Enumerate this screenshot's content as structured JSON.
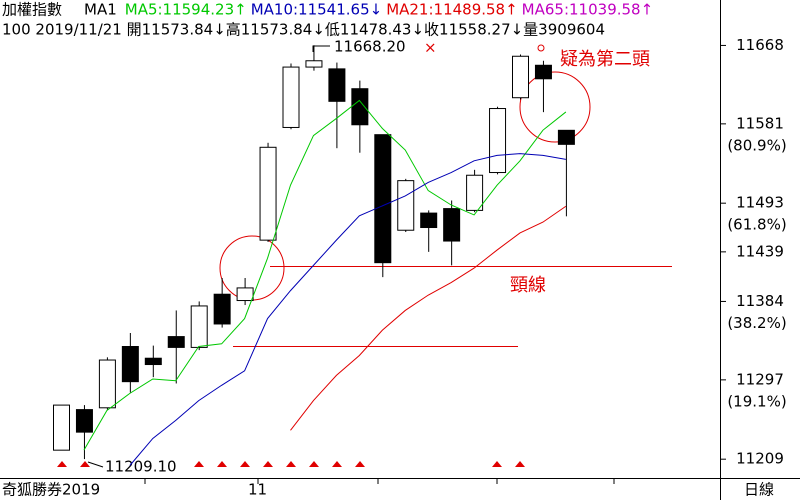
{
  "chart_data": {
    "type": "candlestick",
    "title": "加權指數",
    "subtitle": "MA1",
    "info_line": "100 2019/11/21 開11573.84↓高11573.84↓低11478.43↓收11558.27↓量3909604",
    "open": [
      11219,
      11264,
      11266,
      11334,
      11321,
      11345,
      11333,
      11392,
      11385,
      11452,
      11577,
      11644,
      11642,
      11620,
      11569,
      11463,
      11482,
      11487,
      11485,
      11527,
      11610,
      11646,
      11573.84
    ],
    "high": [
      11269,
      11269,
      11322,
      11349,
      11335,
      11374,
      11384,
      11410,
      11410,
      11560,
      11648,
      11668.2,
      11649,
      11629,
      11569,
      11520,
      11485,
      11496,
      11530,
      11600,
      11658,
      11651,
      11573.84
    ],
    "low": [
      11219,
      11209.1,
      11264,
      11283,
      11300,
      11293,
      11330,
      11355,
      11380,
      11450,
      11575,
      11640,
      11554,
      11549,
      11411,
      11461,
      11439,
      11424,
      11483,
      11525,
      11608,
      11594,
      11478.43
    ],
    "close": [
      11269,
      11239,
      11319,
      11295,
      11314,
      11333,
      11379,
      11359,
      11399,
      11555,
      11644,
      11651,
      11606,
      11580,
      11427,
      11518,
      11466,
      11451,
      11524,
      11598,
      11656,
      11631,
      11558.27
    ],
    "series": [
      {
        "name": "MA5:11594.23↑",
        "color": "#00c800",
        "values": [
          null,
          11219,
          11263,
          11282,
          11298,
          11296,
          11334,
          11337,
          11365,
          11432,
          11513,
          11568,
          11587,
          11607,
          11576,
          11552,
          11507,
          11491,
          11480,
          11513,
          11540,
          11574,
          11594.23
        ]
      },
      {
        "name": "MA10:11541.65↓",
        "color": "#0000b4",
        "values": [
          null,
          null,
          null,
          11202,
          11232,
          11252,
          11274,
          11291,
          11307,
          11365,
          11396,
          11424,
          11452,
          11479,
          11490,
          11501,
          11516,
          11527,
          11540,
          11546,
          11548,
          11546,
          11541.65
        ]
      },
      {
        "name": "MA21:11489.58↑",
        "color": "#e00000",
        "values": [
          null,
          null,
          null,
          null,
          null,
          null,
          null,
          null,
          null,
          null,
          11241,
          11274,
          11302,
          11324,
          11352,
          11374,
          11391,
          11405,
          11421,
          11441,
          11460,
          11472,
          11489.58
        ]
      },
      {
        "name": "MA65:11039.58↑",
        "color": "#c000c0",
        "values": []
      }
    ],
    "ylim": [
      11197,
      11694
    ],
    "yticks": [
      11668,
      11581,
      11493,
      11439,
      11384,
      11297,
      11209
    ],
    "ytick_percents": [
      null,
      "(80.9%)",
      "(61.8%)",
      null,
      "(38.2%)",
      "(19.1%)",
      null
    ],
    "high_label": "11668.20",
    "low_label": "11209.10",
    "annotation_top": "疑為第二頭",
    "annotation_neck": "頸線",
    "footer_left": "奇狐勝券2019",
    "month_label": "11",
    "period_label": "日線"
  }
}
